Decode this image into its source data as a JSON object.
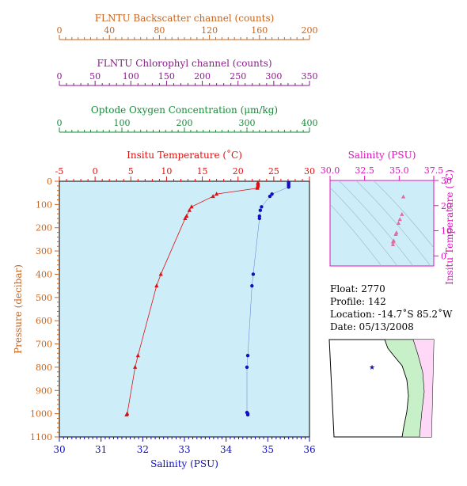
{
  "colors": {
    "backscatter": "#c8641e",
    "chlorophyll": "#8b1a8b",
    "oxygen": "#1a8a3a",
    "temperature": "#e01010",
    "salinity": "#1010c0",
    "ts_salinity": "#e010c0",
    "ts_points": "#e46aa0",
    "plot_bg": "#cdeef8",
    "land": "#c8f0c8",
    "ocean": "#ffffff",
    "area_right": "#ffd8f8"
  },
  "axes": {
    "backscatter": {
      "title": "FLNTU Backscatter channel (counts)",
      "ticks": [
        "0",
        "40",
        "80",
        "120",
        "160",
        "200"
      ]
    },
    "chlorophyll": {
      "title": "FLNTU Chlorophyl channel (counts)",
      "ticks": [
        "0",
        "50",
        "100",
        "150",
        "200",
        "250",
        "300",
        "350"
      ]
    },
    "oxygen": {
      "title": "Optode Oxygen Concentration (μm/kg)",
      "ticks": [
        "0",
        "100",
        "200",
        "300",
        "400"
      ]
    },
    "temperature": {
      "title": "Insitu Temperature (˚C)",
      "ticks": [
        "-5",
        "0",
        "5",
        "10",
        "15",
        "20",
        "25",
        "30"
      ]
    },
    "pressure": {
      "title": "Pressure (decibar)",
      "ticks": [
        "0",
        "100",
        "200",
        "300",
        "400",
        "500",
        "600",
        "700",
        "800",
        "900",
        "1000",
        "1100"
      ]
    },
    "salinity": {
      "title": "Salinity (PSU)",
      "ticks": [
        "30",
        "31",
        "32",
        "33",
        "34",
        "35",
        "36"
      ]
    },
    "ts_salinity": {
      "title": "Salinity (PSU)",
      "ticks": [
        "30.0",
        "32.5",
        "35.0",
        "37.5"
      ]
    },
    "ts_temperature": {
      "title": "Insitu Temperature (˚C)",
      "ticks": [
        "0",
        "10",
        "20",
        "30"
      ]
    }
  },
  "info": {
    "float": "Float:  2770",
    "profile": "Profile:  142",
    "location": "Location:  -14.7˚S  85.2˚W",
    "date": "Date:  05/13/2008"
  },
  "chart_data": [
    {
      "type": "line",
      "name": "temperature-profile",
      "x_axis": "Insitu Temperature (˚C)",
      "y_axis": "Pressure (decibar)",
      "xlim": [
        -5,
        30
      ],
      "ylim": [
        1100,
        0
      ],
      "points": [
        [
          22.8,
          5
        ],
        [
          22.8,
          10
        ],
        [
          22.8,
          15
        ],
        [
          22.8,
          20
        ],
        [
          22.7,
          25
        ],
        [
          22.7,
          30
        ],
        [
          17.0,
          55
        ],
        [
          16.5,
          65
        ],
        [
          13.5,
          110
        ],
        [
          13.2,
          125
        ],
        [
          12.8,
          150
        ],
        [
          12.6,
          160
        ],
        [
          9.2,
          400
        ],
        [
          8.6,
          450
        ],
        [
          6.0,
          750
        ],
        [
          5.6,
          800
        ],
        [
          4.5,
          1000
        ],
        [
          4.4,
          1005
        ]
      ]
    },
    {
      "type": "line",
      "name": "salinity-profile",
      "x_axis": "Salinity (PSU)",
      "y_axis": "Pressure (decibar)",
      "xlim": [
        30,
        36
      ],
      "ylim": [
        1100,
        0
      ],
      "points": [
        [
          35.5,
          5
        ],
        [
          35.5,
          10
        ],
        [
          35.5,
          15
        ],
        [
          35.5,
          20
        ],
        [
          35.5,
          25
        ],
        [
          35.1,
          55
        ],
        [
          35.05,
          65
        ],
        [
          34.85,
          110
        ],
        [
          34.82,
          125
        ],
        [
          34.8,
          150
        ],
        [
          34.8,
          160
        ],
        [
          34.65,
          400
        ],
        [
          34.62,
          450
        ],
        [
          34.52,
          750
        ],
        [
          34.5,
          800
        ],
        [
          34.5,
          995
        ],
        [
          34.52,
          1000
        ],
        [
          34.52,
          1005
        ]
      ]
    },
    {
      "type": "scatter",
      "name": "ts-diagram",
      "x_axis": "Salinity (PSU)",
      "y_axis": "Insitu Temperature (˚C)",
      "xlim": [
        30.0,
        37.5
      ],
      "ylim": [
        -4,
        30
      ],
      "points": [
        [
          35.3,
          23.5
        ],
        [
          35.2,
          16.5
        ],
        [
          35.05,
          14.5
        ],
        [
          34.95,
          13.0
        ],
        [
          34.8,
          9.2
        ],
        [
          34.75,
          8.6
        ],
        [
          34.6,
          6.0
        ],
        [
          34.55,
          5.6
        ],
        [
          34.55,
          4.5
        ]
      ]
    }
  ]
}
